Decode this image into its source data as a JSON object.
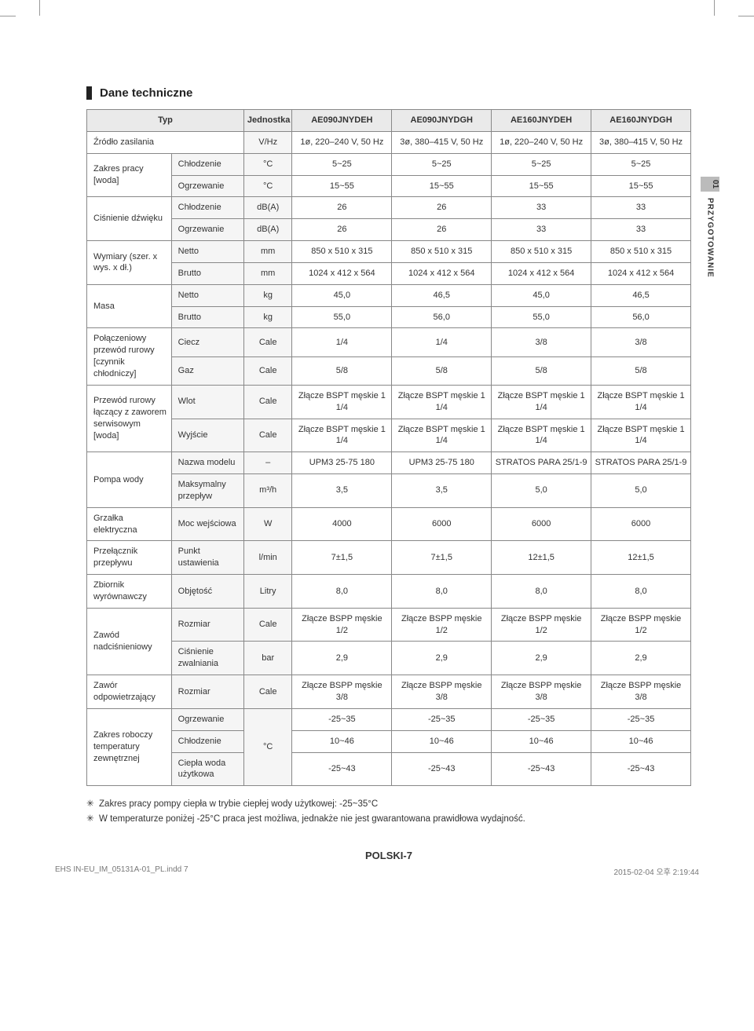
{
  "heading": "Dane techniczne",
  "side_tab": {
    "num": "01",
    "label": "PRZYGOTOWANIE"
  },
  "columns": {
    "type_label": "Typ",
    "unit_label": "Jednostka",
    "models": [
      "AE090JNYDEH",
      "AE090JNYDGH",
      "AE160JNYDEH",
      "AE160JNYDGH"
    ]
  },
  "rows": [
    {
      "label": "Źródło zasilania",
      "span2": true,
      "unit": "V/Hz",
      "vals": [
        "1ø, 220–240 V, 50 Hz",
        "3ø, 380–415 V, 50 Hz",
        "1ø, 220–240 V, 50 Hz",
        "3ø, 380–415 V, 50 Hz"
      ]
    },
    {
      "group": "Zakres pracy [woda]",
      "sub": "Chłodzenie",
      "unit": "°C",
      "vals": [
        "5~25",
        "5~25",
        "5~25",
        "5~25"
      ]
    },
    {
      "sub": "Ogrzewanie",
      "unit": "°C",
      "vals": [
        "15~55",
        "15~55",
        "15~55",
        "15~55"
      ]
    },
    {
      "group": "Ciśnienie dźwięku",
      "sub": "Chłodzenie",
      "unit": "dB(A)",
      "vals": [
        "26",
        "26",
        "33",
        "33"
      ]
    },
    {
      "sub": "Ogrzewanie",
      "unit": "dB(A)",
      "vals": [
        "26",
        "26",
        "33",
        "33"
      ]
    },
    {
      "group": "Wymiary (szer. x wys. x dł.)",
      "sub": "Netto",
      "unit": "mm",
      "vals": [
        "850 x 510 x 315",
        "850 x 510 x 315",
        "850 x 510 x 315",
        "850 x 510 x 315"
      ]
    },
    {
      "sub": "Brutto",
      "unit": "mm",
      "vals": [
        "1024 x 412 x 564",
        "1024 x 412 x 564",
        "1024 x 412 x 564",
        "1024 x 412 x 564"
      ]
    },
    {
      "group": "Masa",
      "sub": "Netto",
      "unit": "kg",
      "vals": [
        "45,0",
        "46,5",
        "45,0",
        "46,5"
      ]
    },
    {
      "sub": "Brutto",
      "unit": "kg",
      "vals": [
        "55,0",
        "56,0",
        "55,0",
        "56,0"
      ]
    },
    {
      "group": "Połączeniowy przewód rurowy [czynnik chłodniczy]",
      "sub": "Ciecz",
      "unit": "Cale",
      "vals": [
        "1/4",
        "1/4",
        "3/8",
        "3/8"
      ]
    },
    {
      "sub": "Gaz",
      "unit": "Cale",
      "vals": [
        "5/8",
        "5/8",
        "5/8",
        "5/8"
      ]
    },
    {
      "group": "Przewód rurowy łączący z zaworem serwisowym [woda]",
      "sub": "Wlot",
      "unit": "Cale",
      "vals": [
        "Złącze BSPT męskie 1 1/4",
        "Złącze BSPT męskie 1 1/4",
        "Złącze BSPT męskie 1 1/4",
        "Złącze BSPT męskie 1 1/4"
      ]
    },
    {
      "sub": "Wyjście",
      "unit": "Cale",
      "vals": [
        "Złącze BSPT męskie 1 1/4",
        "Złącze BSPT męskie 1 1/4",
        "Złącze BSPT męskie 1 1/4",
        "Złącze BSPT męskie 1 1/4"
      ]
    },
    {
      "group": "Pompa wody",
      "sub": "Nazwa modelu",
      "unit": "–",
      "vals": [
        "UPM3 25-75 180",
        "UPM3 25-75 180",
        "STRATOS PARA 25/1-9",
        "STRATOS PARA 25/1-9"
      ]
    },
    {
      "sub": "Maksymalny przepływ",
      "unit": "m³/h",
      "vals": [
        "3,5",
        "3,5",
        "5,0",
        "5,0"
      ]
    },
    {
      "group": "Grzałka elektryczna",
      "group_rows": 1,
      "sub": "Moc wejściowa",
      "unit": "W",
      "vals": [
        "4000",
        "6000",
        "6000",
        "6000"
      ]
    },
    {
      "group": "Przełącznik przepływu",
      "group_rows": 1,
      "sub": "Punkt ustawienia",
      "unit": "l/min",
      "vals": [
        "7±1,5",
        "7±1,5",
        "12±1,5",
        "12±1,5"
      ]
    },
    {
      "group": "Zbiornik wyrównawczy",
      "group_rows": 1,
      "sub": "Objętość",
      "unit": "Litry",
      "vals": [
        "8,0",
        "8,0",
        "8,0",
        "8,0"
      ]
    },
    {
      "group": "Zawód nadciśnieniowy",
      "sub": "Rozmiar",
      "unit": "Cale",
      "vals": [
        "Złącze BSPP męskie 1/2",
        "Złącze BSPP męskie 1/2",
        "Złącze BSPP męskie 1/2",
        "Złącze BSPP męskie 1/2"
      ]
    },
    {
      "sub": "Ciśnienie zwalniania",
      "unit": "bar",
      "vals": [
        "2,9",
        "2,9",
        "2,9",
        "2,9"
      ]
    },
    {
      "group": "Zawór odpowietrzający",
      "group_rows": 1,
      "sub": "Rozmiar",
      "unit": "Cale",
      "vals": [
        "Złącze BSPP męskie 3/8",
        "Złącze BSPP męskie 3/8",
        "Złącze BSPP męskie 3/8",
        "Złącze BSPP męskie 3/8"
      ]
    },
    {
      "group": "Zakres roboczy temperatury zewnętrznej",
      "group_rows": 3,
      "sub": "Ogrzewanie",
      "unit": "°C",
      "unit_rows": 3,
      "vals": [
        "-25~35",
        "-25~35",
        "-25~35",
        "-25~35"
      ]
    },
    {
      "sub": "Chłodzenie",
      "vals": [
        "10~46",
        "10~46",
        "10~46",
        "10~46"
      ]
    },
    {
      "sub": "Ciepła woda użytkowa",
      "vals": [
        "-25~43",
        "-25~43",
        "-25~43",
        "-25~43"
      ]
    }
  ],
  "notes": [
    "Zakres pracy pompy ciepła w trybie ciepłej wody użytkowej: -25~35°C",
    "W temperaturze poniżej -25°C praca jest możliwa, jednakże nie jest gwarantowana prawidłowa wydajność."
  ],
  "page_footer": "POLSKI-7",
  "doc_footer_left": "EHS IN-EU_IM_05131A-01_PL.indd   7",
  "doc_footer_right": "2015-02-04   오후 2:19:44"
}
